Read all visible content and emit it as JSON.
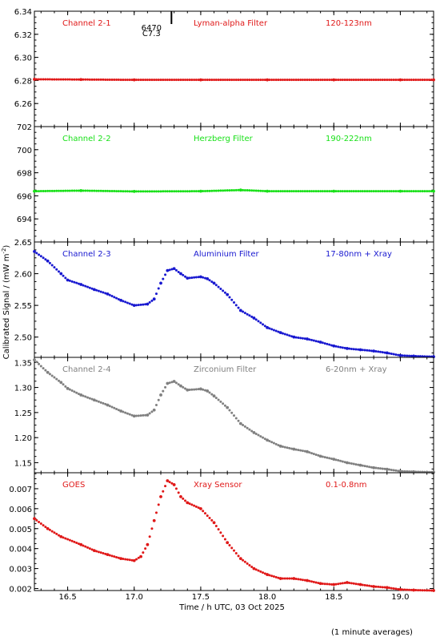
{
  "chart_data": {
    "type": "scatter",
    "xlabel": "Time / h UTC, 03 Oct 2025",
    "ylabel": "Calibrated Signal / (mW m",
    "ylabel_sup": "-2",
    "ylabel_close": ")",
    "footnote": "(1 minute averages)",
    "xlim": [
      16.25,
      19.25
    ],
    "xticks": [
      16.5,
      17.0,
      17.5,
      18.0,
      18.5,
      19.0
    ],
    "xtick_labels": [
      "16.5",
      "17.0",
      "17.5",
      "18.0",
      "18.5",
      "19.0"
    ],
    "marker": {
      "x": 17.28,
      "label1": "6470",
      "label2": "C7.3"
    },
    "panels": [
      {
        "channel": "Channel 2-1",
        "filter": "Lyman-alpha Filter",
        "band": "120-123nm",
        "color": "#e01818",
        "ylim": [
          6.24,
          6.34
        ],
        "yticks": [
          6.26,
          6.28,
          6.3,
          6.32,
          6.34
        ],
        "ytick_labels": [
          "6.26",
          "6.28",
          "6.30",
          "6.32",
          "6.34"
        ],
        "points": [
          [
            16.25,
            6.281
          ],
          [
            16.6,
            6.2808
          ],
          [
            17.0,
            6.2805
          ],
          [
            17.5,
            6.2805
          ],
          [
            18.0,
            6.2805
          ],
          [
            18.5,
            6.2805
          ],
          [
            19.0,
            6.2805
          ],
          [
            19.25,
            6.2805
          ]
        ]
      },
      {
        "channel": "Channel 2-2",
        "filter": "Herzberg Filter",
        "band": "190-222nm",
        "color": "#18e018",
        "ylim": [
          692,
          702
        ],
        "yticks": [
          694,
          696,
          698,
          700,
          702
        ],
        "ytick_labels": [
          "694",
          "696",
          "698",
          "700",
          "702"
        ],
        "points": [
          [
            16.25,
            696.4
          ],
          [
            16.6,
            696.45
          ],
          [
            17.0,
            696.38
          ],
          [
            17.5,
            696.4
          ],
          [
            17.8,
            696.5
          ],
          [
            18.0,
            696.4
          ],
          [
            18.5,
            696.4
          ],
          [
            19.0,
            696.4
          ],
          [
            19.25,
            696.4
          ]
        ]
      },
      {
        "channel": "Channel 2-3",
        "filter": "Aluminium Filter",
        "band": "17-80nm + Xray",
        "color": "#1818d0",
        "ylim": [
          2.468,
          2.65
        ],
        "yticks": [
          2.5,
          2.55,
          2.6,
          2.65
        ],
        "ytick_labels": [
          "2.50",
          "2.55",
          "2.60",
          "2.65"
        ],
        "points": [
          [
            16.25,
            2.635
          ],
          [
            16.35,
            2.62
          ],
          [
            16.45,
            2.6
          ],
          [
            16.5,
            2.59
          ],
          [
            16.6,
            2.583
          ],
          [
            16.7,
            2.575
          ],
          [
            16.8,
            2.568
          ],
          [
            16.9,
            2.558
          ],
          [
            17.0,
            2.55
          ],
          [
            17.1,
            2.552
          ],
          [
            17.15,
            2.56
          ],
          [
            17.2,
            2.585
          ],
          [
            17.25,
            2.605
          ],
          [
            17.3,
            2.608
          ],
          [
            17.35,
            2.6
          ],
          [
            17.4,
            2.593
          ],
          [
            17.5,
            2.595
          ],
          [
            17.55,
            2.592
          ],
          [
            17.6,
            2.585
          ],
          [
            17.7,
            2.567
          ],
          [
            17.8,
            2.542
          ],
          [
            17.9,
            2.53
          ],
          [
            18.0,
            2.515
          ],
          [
            18.1,
            2.507
          ],
          [
            18.2,
            2.5
          ],
          [
            18.3,
            2.497
          ],
          [
            18.4,
            2.492
          ],
          [
            18.5,
            2.486
          ],
          [
            18.6,
            2.482
          ],
          [
            18.7,
            2.48
          ],
          [
            18.8,
            2.478
          ],
          [
            18.9,
            2.475
          ],
          [
            19.0,
            2.471
          ],
          [
            19.1,
            2.47
          ],
          [
            19.25,
            2.469
          ]
        ]
      },
      {
        "channel": "Channel 2-4",
        "filter": "Zirconium Filter",
        "band": "6-20nm + Xray",
        "color": "#808080",
        "ylim": [
          1.13,
          1.36
        ],
        "yticks": [
          1.15,
          1.2,
          1.25,
          1.3,
          1.35
        ],
        "ytick_labels": [
          "1.15",
          "1.20",
          "1.25",
          "1.30",
          "1.35"
        ],
        "points": [
          [
            16.25,
            1.355
          ],
          [
            16.35,
            1.33
          ],
          [
            16.45,
            1.31
          ],
          [
            16.5,
            1.298
          ],
          [
            16.6,
            1.285
          ],
          [
            16.7,
            1.275
          ],
          [
            16.8,
            1.265
          ],
          [
            16.9,
            1.253
          ],
          [
            17.0,
            1.243
          ],
          [
            17.1,
            1.245
          ],
          [
            17.15,
            1.255
          ],
          [
            17.2,
            1.285
          ],
          [
            17.25,
            1.308
          ],
          [
            17.3,
            1.312
          ],
          [
            17.35,
            1.303
          ],
          [
            17.4,
            1.295
          ],
          [
            17.5,
            1.297
          ],
          [
            17.55,
            1.293
          ],
          [
            17.6,
            1.283
          ],
          [
            17.7,
            1.26
          ],
          [
            17.8,
            1.228
          ],
          [
            17.9,
            1.21
          ],
          [
            18.0,
            1.195
          ],
          [
            18.1,
            1.183
          ],
          [
            18.2,
            1.177
          ],
          [
            18.3,
            1.172
          ],
          [
            18.4,
            1.163
          ],
          [
            18.5,
            1.157
          ],
          [
            18.6,
            1.15
          ],
          [
            18.7,
            1.145
          ],
          [
            18.8,
            1.14
          ],
          [
            18.9,
            1.137
          ],
          [
            19.0,
            1.133
          ],
          [
            19.1,
            1.132
          ],
          [
            19.25,
            1.131
          ]
        ]
      },
      {
        "channel": "GOES",
        "filter": "Xray Sensor",
        "band": "0.1-0.8nm",
        "color": "#e01818",
        "ylim": [
          0.0019,
          0.0078
        ],
        "yticks": [
          0.002,
          0.003,
          0.004,
          0.005,
          0.006,
          0.007
        ],
        "ytick_labels": [
          "0.002",
          "0.003",
          "0.004",
          "0.005",
          "0.006",
          "0.007"
        ],
        "points": [
          [
            16.25,
            0.0055
          ],
          [
            16.35,
            0.005
          ],
          [
            16.45,
            0.0046
          ],
          [
            16.6,
            0.0042
          ],
          [
            16.7,
            0.0039
          ],
          [
            16.8,
            0.0037
          ],
          [
            16.9,
            0.0035
          ],
          [
            17.0,
            0.0034
          ],
          [
            17.05,
            0.0036
          ],
          [
            17.1,
            0.0042
          ],
          [
            17.15,
            0.0054
          ],
          [
            17.2,
            0.0066
          ],
          [
            17.25,
            0.0074
          ],
          [
            17.3,
            0.0072
          ],
          [
            17.35,
            0.0066
          ],
          [
            17.4,
            0.0063
          ],
          [
            17.5,
            0.006
          ],
          [
            17.6,
            0.0053
          ],
          [
            17.7,
            0.0043
          ],
          [
            17.8,
            0.0035
          ],
          [
            17.9,
            0.003
          ],
          [
            18.0,
            0.0027
          ],
          [
            18.1,
            0.0025
          ],
          [
            18.2,
            0.0025
          ],
          [
            18.3,
            0.0024
          ],
          [
            18.4,
            0.00225
          ],
          [
            18.5,
            0.0022
          ],
          [
            18.6,
            0.0023
          ],
          [
            18.7,
            0.0022
          ],
          [
            18.8,
            0.0021
          ],
          [
            18.9,
            0.00205
          ],
          [
            19.0,
            0.00195
          ],
          [
            19.1,
            0.00192
          ],
          [
            19.25,
            0.0019
          ]
        ]
      }
    ]
  }
}
